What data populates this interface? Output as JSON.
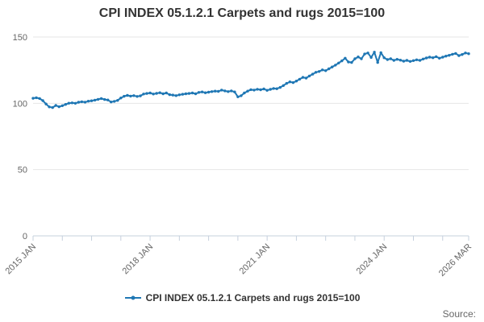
{
  "title": "CPI INDEX 05.1.2.1 Carpets and rugs 2015=100",
  "legend": {
    "series_label": "CPI INDEX 05.1.2.1 Carpets and rugs 2015=100"
  },
  "source": {
    "label": "Source:"
  },
  "colors": {
    "line": "#1f77b4",
    "grid": "#e6e6e6",
    "axis": "#c6d0dd",
    "axis_text": "#666666",
    "title_text": "#333333",
    "legend_text": "#333333",
    "source_text": "#666666"
  },
  "chart_data": {
    "type": "line",
    "title": "CPI INDEX 05.1.2.1 Carpets and rugs 2015=100",
    "xlabel": "",
    "ylabel": "",
    "x_start": "2015 JAN",
    "x_end": "2026 MAR",
    "frequency": "monthly",
    "ylim": [
      0,
      150
    ],
    "y_ticks": [
      0,
      50,
      100,
      150
    ],
    "grid": "horizontal-only",
    "legend_position": "bottom-center",
    "x_tick_interval_months": 9,
    "x_axis_labels": [
      {
        "month_index": 0,
        "label": "2015 JAN"
      },
      {
        "month_index": 36,
        "label": "2018 JAN"
      },
      {
        "month_index": 72,
        "label": "2021 JAN"
      },
      {
        "month_index": 108,
        "label": "2024 JAN"
      },
      {
        "month_index": 134,
        "label": "2026 MAR"
      }
    ],
    "values": [
      103.8,
      104.2,
      103.6,
      102.0,
      99.5,
      97.3,
      96.8,
      98.4,
      97.4,
      98.2,
      99.2,
      100.1,
      100.3,
      100.0,
      100.8,
      101.2,
      100.9,
      101.6,
      101.9,
      102.4,
      103.0,
      103.6,
      102.9,
      102.5,
      101.0,
      101.5,
      102.2,
      104.0,
      105.3,
      106.0,
      105.4,
      105.8,
      105.2,
      105.6,
      107.0,
      107.4,
      107.8,
      107.0,
      107.5,
      108.0,
      107.2,
      107.8,
      106.5,
      106.2,
      105.8,
      106.4,
      106.8,
      107.2,
      107.4,
      107.8,
      107.2,
      108.2,
      108.6,
      108.0,
      108.4,
      108.8,
      109.2,
      109.0,
      110.0,
      109.4,
      108.8,
      109.4,
      108.6,
      104.9,
      105.7,
      107.8,
      109.2,
      110.3,
      110.0,
      110.6,
      110.2,
      110.8,
      109.8,
      110.5,
      111.2,
      111.0,
      112.0,
      113.4,
      115.0,
      116.2,
      115.6,
      116.8,
      118.2,
      119.6,
      119.0,
      120.6,
      122.0,
      123.4,
      124.0,
      125.2,
      124.6,
      126.0,
      127.4,
      128.8,
      130.4,
      132.0,
      134.0,
      131.2,
      130.8,
      133.6,
      135.0,
      133.6,
      137.2,
      138.0,
      134.6,
      138.6,
      130.8,
      138.2,
      134.4,
      133.0,
      133.6,
      132.4,
      133.2,
      132.6,
      131.8,
      132.4,
      131.6,
      132.2,
      132.8,
      132.4,
      133.4,
      134.2,
      134.8,
      134.4,
      135.2,
      134.0,
      134.8,
      135.6,
      136.2,
      137.0,
      137.6,
      136.0,
      136.8,
      138.0,
      137.4
    ]
  }
}
